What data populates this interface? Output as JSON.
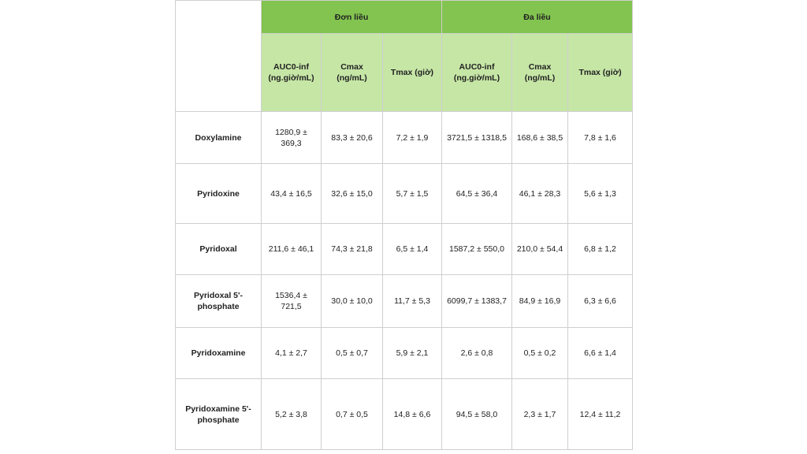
{
  "table": {
    "groups": [
      "Đơn liều",
      "Đa liều"
    ],
    "columns": [
      "AUC0-inf (ng.giờ/mL)",
      "Cmax (ng/mL)",
      "Tmax (giờ)",
      "AUC0-inf (ng.giờ/mL)",
      "Cmax (ng/mL)",
      "Tmax (giờ)"
    ],
    "rows": [
      {
        "label": "Doxylamine",
        "cells": [
          "1280,9 ± 369,3",
          "83,3 ± 20,6",
          "7,2 ± 1,9",
          "3721,5 ± 1318,5",
          "168,6 ± 38,5",
          "7,8 ± 1,6"
        ]
      },
      {
        "label": "Pyridoxine",
        "cells": [
          "43,4 ± 16,5",
          "32,6 ± 15,0",
          "5,7 ± 1,5",
          "64,5 ± 36,4",
          "46,1 ± 28,3",
          "5,6 ± 1,3"
        ]
      },
      {
        "label": "Pyridoxal",
        "cells": [
          "211,6 ± 46,1",
          "74,3 ± 21,8",
          "6,5 ± 1,4",
          "1587,2 ± 550,0",
          "210,0 ± 54,4",
          "6,8 ± 1,2"
        ]
      },
      {
        "label": "Pyridoxal 5'-phosphate",
        "cells": [
          "1536,4 ± 721,5",
          "30,0 ± 10,0",
          "11,7 ± 5,3",
          "6099,7 ± 1383,7",
          "84,9 ± 16,9",
          "6,3 ± 6,6"
        ]
      },
      {
        "label": "Pyridoxamine",
        "cells": [
          "4,1 ± 2,7",
          "0,5 ± 0,7",
          "5,9 ± 2,1",
          "2,6 ± 0,8",
          "0,5 ± 0,2",
          "6,6 ± 1,4"
        ]
      },
      {
        "label": "Pyridoxamine 5'-phosphate",
        "cells": [
          "5,2 ± 3,8",
          "0,7 ± 0,5",
          "14,8 ± 6,6",
          "94,5 ± 58,0",
          "2,3 ± 1,7",
          "12,4 ± 11,2"
        ]
      }
    ]
  }
}
